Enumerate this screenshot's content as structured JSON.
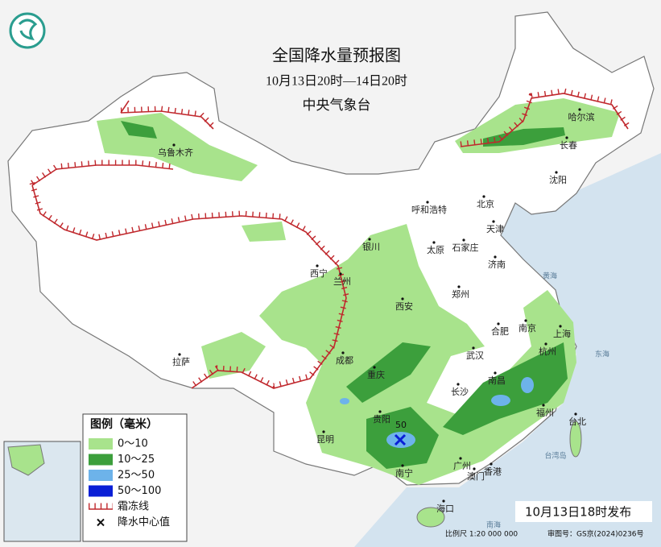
{
  "header": {
    "title": "全国降水量预报图",
    "period": "10月13日20时—14日20时",
    "issuer": "中央气象台"
  },
  "legend": {
    "title": "图例（毫米）",
    "items": [
      {
        "label": "0～10",
        "color": "#a8e38c"
      },
      {
        "label": "10～25",
        "color": "#3c9f3c"
      },
      {
        "label": "25～50",
        "color": "#6db3ea"
      },
      {
        "label": "50～100",
        "color": "#0a1fd6"
      },
      {
        "label": "霜冻线",
        "color": "#c0282d"
      },
      {
        "label": "降水中心值",
        "color": "#111111"
      }
    ]
  },
  "cities": [
    "乌鲁木齐",
    "哈尔滨",
    "长春",
    "沈阳",
    "北京",
    "天津",
    "呼和浩特",
    "石家庄",
    "太原",
    "济南",
    "银川",
    "兰州",
    "西宁",
    "郑州",
    "西安",
    "合肥",
    "南京",
    "上海",
    "杭州",
    "武汉",
    "成都",
    "重庆",
    "拉萨",
    "长沙",
    "南昌",
    "福州",
    "台北",
    "贵阳",
    "昆明",
    "南宁",
    "广州",
    "澳门",
    "香港",
    "海口"
  ],
  "seas": [
    "黄海",
    "东海",
    "台湾岛",
    "南海"
  ],
  "center_value": 50,
  "footer": {
    "issued": "10月13日18时发布",
    "scale": "比例尺 1:20 000 000",
    "approval": "审图号：GS京(2024)0236号"
  }
}
